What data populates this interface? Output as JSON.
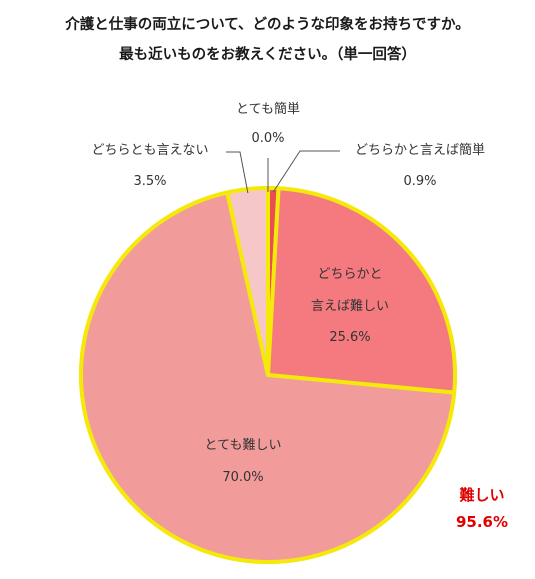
{
  "title_line1": "介護と仕事の両立について、どのような印象をお持ちですか。",
  "title_line2": "最も近いものをお教えください。（単一回答）",
  "chart_data": {
    "type": "pie",
    "title": "介護と仕事の両立について、どのような印象をお持ちですか。最も近いものをお教えください。（単一回答）",
    "slices": [
      {
        "label": "とても簡単",
        "value": 0.0,
        "value_label": "0.0%",
        "color": "#e84f55"
      },
      {
        "label": "どちらかと言えば簡単",
        "value": 0.9,
        "value_label": "0.9%",
        "color": "#e84f55"
      },
      {
        "label": "どちらかと言えば難しい",
        "label_lines": [
          "どちらかと",
          "言えば難しい"
        ],
        "value": 25.6,
        "value_label": "25.6%",
        "color": "#f47a80"
      },
      {
        "label": "とても難しい",
        "value": 70.0,
        "value_label": "70.0%",
        "color": "#f29b9b"
      },
      {
        "label": "どちらとも言えない",
        "value": 3.5,
        "value_label": "3.5%",
        "color": "#f6c7c9"
      }
    ],
    "outline_color": "#f5e90c",
    "annotation": {
      "label": "難しい",
      "value_label": "95.6%",
      "color": "#e00000"
    }
  }
}
